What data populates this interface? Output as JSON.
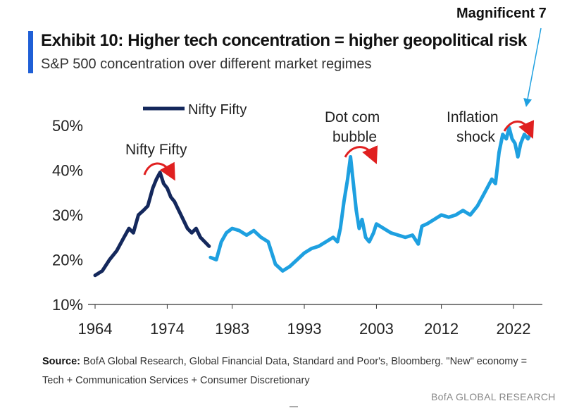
{
  "header": {
    "title": "Exhibit 10: Higher tech concentration = higher geopolitical risk",
    "subtitle": "S&P 500 concentration over different market regimes",
    "top_callout": "Magnificent 7"
  },
  "footer": {
    "source_label": "Source:",
    "source_text": "BofA Global Research, Global Financial Data, Standard and Poor's, Bloomberg. \"New\" economy = Tech + Communication Services + Consumer Discretionary",
    "brand": "BofA GLOBAL RESEARCH"
  },
  "colors": {
    "accent": "#1f5fd6",
    "series_dark": "#14285c",
    "series_light": "#1ea0e0",
    "arrow": "#e02020"
  },
  "chart_data": {
    "type": "line",
    "title": "Exhibit 10: Higher tech concentration = higher geopolitical risk",
    "subtitle": "S&P 500 concentration over different market regimes",
    "xlabel": "",
    "ylabel": "",
    "x_ticks": [
      "1964",
      "1974",
      "1983",
      "1993",
      "2003",
      "2012",
      "2022"
    ],
    "y_ticks": [
      "10%",
      "20%",
      "30%",
      "40%",
      "50%"
    ],
    "xlim": [
      1964,
      2026
    ],
    "ylim": [
      10,
      52
    ],
    "grid": false,
    "legend": {
      "position": "top-left",
      "entries": [
        "Nifty Fifty"
      ]
    },
    "series": [
      {
        "name": "Nifty Fifty",
        "color": "#14285c",
        "x": [
          1964,
          1965,
          1966,
          1967,
          1968,
          1968.7,
          1969.3,
          1970,
          1970.7,
          1971.3,
          1972,
          1972.5,
          1973,
          1973.5,
          1974,
          1974.5,
          1975,
          1975.6,
          1976.2,
          1976.8,
          1977.4,
          1978,
          1978.6,
          1979.2,
          1979.8
        ],
        "values": [
          16.5,
          17.5,
          20,
          22,
          25,
          27,
          26,
          30,
          31,
          32,
          36,
          38,
          39.5,
          37,
          36,
          34,
          33,
          31,
          29,
          27,
          26,
          27,
          25,
          24,
          23
        ]
      },
      {
        "name": "",
        "color": "#1ea0e0",
        "x": [
          1980,
          1980.8,
          1981.5,
          1982.2,
          1983,
          1984,
          1985,
          1986,
          1987,
          1988,
          1989,
          1990,
          1991,
          1992,
          1993,
          1994,
          1995,
          1996,
          1997,
          1997.6,
          1998,
          1998.5,
          1999,
          1999.4,
          1999.8,
          2000.2,
          2000.6,
          2001,
          2001.5,
          2002,
          2002.6,
          2003,
          2004,
          2005,
          2006,
          2007,
          2008,
          2008.8,
          2009.3,
          2010,
          2011,
          2012,
          2013,
          2014,
          2015,
          2016,
          2017,
          2018,
          2019,
          2019.5,
          2020,
          2020.5,
          2021,
          2021.4,
          2021.8,
          2022.2,
          2022.6,
          2023,
          2023.5,
          2024,
          2024.5
        ],
        "values": [
          20.5,
          20,
          24,
          26,
          27,
          26.5,
          25.5,
          26.5,
          25,
          24,
          19,
          17.5,
          18.5,
          20,
          21.5,
          22.5,
          23,
          24,
          25,
          24,
          27,
          33,
          38,
          43,
          37,
          31,
          27,
          29,
          25,
          24,
          26,
          28,
          27,
          26,
          25.5,
          25,
          25.5,
          23.5,
          27.5,
          28,
          29,
          30,
          29.5,
          30,
          31,
          30,
          32,
          35,
          38,
          37,
          44,
          48,
          47,
          49.5,
          47,
          46,
          43,
          46,
          48,
          47,
          48.5
        ]
      }
    ],
    "annotations": [
      "Nifty Fifty",
      "Dot com bubble",
      "Inflation shock",
      "Magnificent 7"
    ]
  },
  "annotation_text": {
    "nifty": "Nifty Fifty",
    "dotcom_1": "Dot com",
    "dotcom_2": "bubble",
    "inflation_1": "Inflation",
    "inflation_2": "shock"
  }
}
